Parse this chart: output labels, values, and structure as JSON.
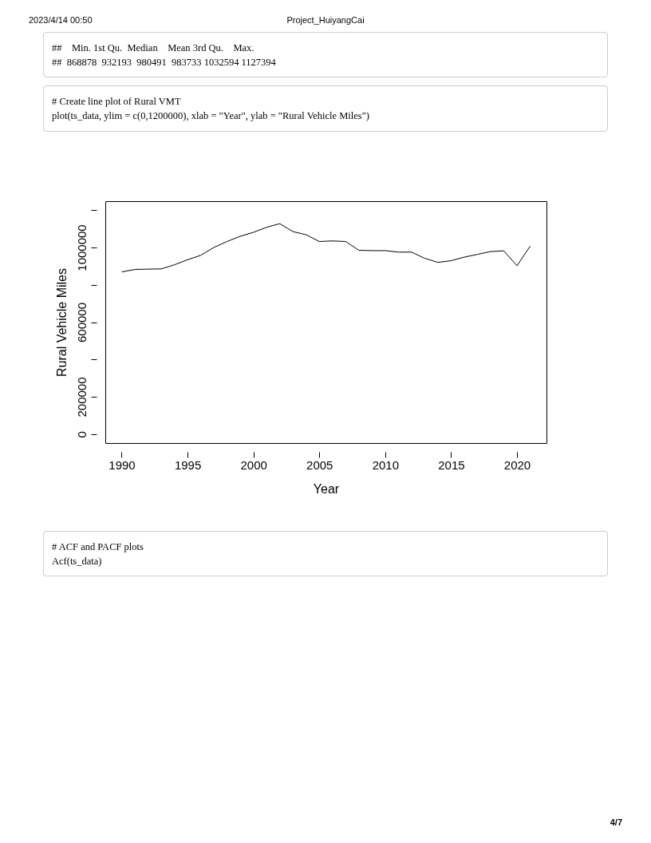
{
  "chart_data": {
    "type": "line",
    "title": "Project_HuiyangCai",
    "xlabel": "Year",
    "ylabel": "Rural Vehicle Miles",
    "x": [
      1990,
      1991,
      1992,
      1993,
      1994,
      1995,
      1996,
      1997,
      1998,
      1999,
      2000,
      2001,
      2002,
      2003,
      2004,
      2005,
      2006,
      2007,
      2008,
      2009,
      2010,
      2011,
      2012,
      2013,
      2014,
      2015,
      2016,
      2017,
      2018,
      2019,
      2020,
      2021
    ],
    "values": [
      868878,
      882000,
      884000,
      885000,
      907000,
      934000,
      958000,
      1000000,
      1032000,
      1060000,
      1081000,
      1108000,
      1127394,
      1085000,
      1068000,
      1032000,
      1035000,
      1032000,
      985000,
      983000,
      983000,
      975000,
      975000,
      942000,
      920000,
      929000,
      948000,
      963000,
      978000,
      982000,
      902000,
      1007000
    ],
    "color": "#000000",
    "marker": "none",
    "line_style": "solid",
    "grid": false,
    "legend": false,
    "xlim": [
      1988.76,
      2022.24
    ],
    "xticks": [
      1990,
      1995,
      2000,
      2005,
      2010,
      2015,
      2020
    ],
    "ylim": [
      -48000,
      1248000
    ],
    "yticks": [
      0,
      200000,
      {
        "value": 400000,
        "label": null
      },
      600000,
      {
        "value": 800000,
        "label": null
      },
      1000000,
      {
        "value": 1200000,
        "label": null
      }
    ],
    "annotations": [
      "2023/4/14 00:50",
      "##    Min. 1st Qu.  Median    Mean 3rd Qu.    Max. \n##  868878  932193  980491  983733 1032594 1127394",
      "# Create line plot of Rural VMT\nplot(ts_data, ylim = c(0,1200000), xlab = \"Year\", ylab = \"Rural Vehicle Miles\")",
      "# ACF and PACF plots\nAcf(ts_data)",
      "4/7"
    ]
  }
}
